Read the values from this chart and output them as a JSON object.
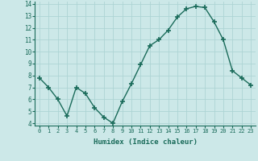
{
  "x": [
    0,
    1,
    2,
    3,
    4,
    5,
    6,
    7,
    8,
    9,
    10,
    11,
    12,
    13,
    14,
    15,
    16,
    17,
    18,
    19,
    20,
    21,
    22,
    23
  ],
  "y": [
    7.8,
    7.0,
    6.0,
    4.6,
    7.0,
    6.5,
    5.3,
    4.5,
    4.0,
    5.8,
    7.3,
    8.9,
    10.5,
    11.0,
    11.8,
    12.9,
    13.6,
    13.8,
    13.7,
    12.5,
    11.0,
    8.4,
    7.8,
    7.2
  ],
  "line_color": "#1a6b5a",
  "marker": "+",
  "marker_size": 4,
  "xlabel": "Humidex (Indice chaleur)",
  "ylim": [
    3.8,
    14.2
  ],
  "xlim": [
    -0.5,
    23.5
  ],
  "yticks": [
    4,
    5,
    6,
    7,
    8,
    9,
    10,
    11,
    12,
    13,
    14
  ],
  "xticks": [
    0,
    1,
    2,
    3,
    4,
    5,
    6,
    7,
    8,
    9,
    10,
    11,
    12,
    13,
    14,
    15,
    16,
    17,
    18,
    19,
    20,
    21,
    22,
    23
  ],
  "bg_color": "#cce8e8",
  "grid_color": "#add4d4",
  "tick_color": "#1a6b5a",
  "label_color": "#1a6b5a"
}
